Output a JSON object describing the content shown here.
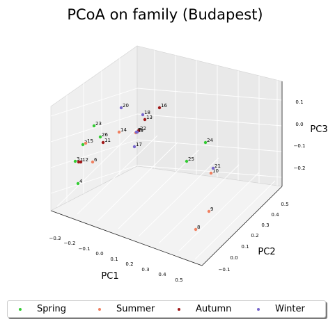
{
  "chart_data": {
    "type": "scatter",
    "title": "PCoA on family (Budapest)",
    "xlabel": "PC1",
    "ylabel": "PC2",
    "zlabel": "PC3",
    "x_ticks": [
      "−0.3",
      "−0.2",
      "−0.1",
      "0.0",
      "0.1",
      "0.2",
      "0.3",
      "0.4",
      "0.5"
    ],
    "y_ticks": [
      "−0.1",
      "0.0",
      "0.1",
      "0.2",
      "0.3",
      "0.4",
      "0.5"
    ],
    "z_ticks": [
      "−0.2",
      "−0.1",
      "0.0",
      "0.1"
    ],
    "grid": true,
    "legend_position": "bottom",
    "series": [
      {
        "name": "Spring",
        "color": "#33cc33",
        "points": [
          {
            "label": "2",
            "pc1": -0.19,
            "pc2": 0.15,
            "pc3": -0.05
          },
          {
            "label": "3",
            "pc1": -0.24,
            "pc2": 0.12,
            "pc3": -0.12
          },
          {
            "label": "4",
            "pc1": -0.22,
            "pc2": 0.08,
            "pc3": -0.22
          },
          {
            "label": "23",
            "pc1": -0.13,
            "pc2": 0.22,
            "pc3": 0.06
          },
          {
            "label": "24",
            "pc1": 0.4,
            "pc2": 0.22,
            "pc3": -0.05
          },
          {
            "label": "25",
            "pc1": 0.33,
            "pc2": 0.04,
            "pc3": -0.15
          },
          {
            "label": "26",
            "pc1": -0.08,
            "pc2": 0.2,
            "pc3": -0.01
          }
        ]
      },
      {
        "name": "Summer",
        "color": "#f08060",
        "points": [
          {
            "label": "6",
            "pc1": -0.13,
            "pc2": 0.1,
            "pc3": -0.12
          },
          {
            "label": "8",
            "pc1": 0.42,
            "pc2": -0.1,
            "pc3": -0.25
          },
          {
            "label": "9",
            "pc1": 0.47,
            "pc2": -0.05,
            "pc3": -0.16
          },
          {
            "label": "10",
            "pc1": 0.47,
            "pc2": 0.08,
            "pc3": -0.14
          },
          {
            "label": "14",
            "pc1": 0.0,
            "pc2": 0.25,
            "pc3": 0.02
          },
          {
            "label": "15",
            "pc1": -0.16,
            "pc2": 0.14,
            "pc3": -0.04
          },
          {
            "label": "19",
            "pc1": 0.05,
            "pc2": 0.26,
            "pc3": 0.02
          }
        ]
      },
      {
        "name": "Autumn",
        "color": "#a01818",
        "points": [
          {
            "label": "1",
            "pc1": -0.21,
            "pc2": 0.12,
            "pc3": -0.12
          },
          {
            "label": "11",
            "pc1": -0.05,
            "pc2": 0.19,
            "pc3": -0.02
          },
          {
            "label": "12",
            "pc1": -0.19,
            "pc2": 0.11,
            "pc3": -0.12
          },
          {
            "label": "13",
            "pc1": 0.09,
            "pc2": 0.31,
            "pc3": 0.04
          },
          {
            "label": "16",
            "pc1": 0.14,
            "pc2": 0.36,
            "pc3": 0.08
          },
          {
            "label": "22",
            "pc1": 0.06,
            "pc2": 0.27,
            "pc3": 0.02
          }
        ]
      },
      {
        "name": "Winter",
        "color": "#7766cc",
        "points": [
          {
            "label": "5",
            "pc1": 0.06,
            "pc2": 0.26,
            "pc3": 0.02
          },
          {
            "label": "7",
            "pc1": 0.05,
            "pc2": 0.25,
            "pc3": 0.02
          },
          {
            "label": "17",
            "pc1": 0.05,
            "pc2": 0.23,
            "pc3": -0.08
          },
          {
            "label": "18",
            "pc1": 0.07,
            "pc2": 0.33,
            "pc3": 0.06
          },
          {
            "label": "20",
            "pc1": -0.03,
            "pc2": 0.35,
            "pc3": 0.12
          },
          {
            "label": "21",
            "pc1": 0.48,
            "pc2": 0.1,
            "pc3": -0.13
          }
        ]
      }
    ]
  }
}
